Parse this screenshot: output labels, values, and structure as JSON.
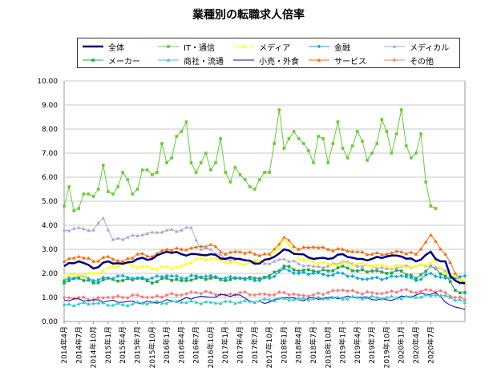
{
  "title": "業種別の転職求人倍率",
  "chart_data": {
    "type": "line",
    "title": "業種別の転職求人倍率",
    "ylim": [
      0,
      10
    ],
    "yticks": [
      "0.00",
      "1.00",
      "2.00",
      "3.00",
      "4.00",
      "5.00",
      "6.00",
      "7.00",
      "8.00",
      "9.00",
      "10.00"
    ],
    "x_labels": [
      "2014年4月",
      "2014年7月",
      "2014年10月",
      "2015年1月",
      "2015年4月",
      "2015年7月",
      "2015年10月",
      "2016年1月",
      "2016年4月",
      "2016年7月",
      "2016年10月",
      "2017年1月",
      "2017年4月",
      "2017年7月",
      "2017年10月",
      "2018年1月",
      "2018年4月",
      "2018年7月",
      "2018年10月",
      "2019年1月",
      "2019年4月",
      "2019年7月",
      "2019年10月",
      "2020年1月",
      "2020年4月",
      "2020年7月"
    ],
    "grid": true,
    "legend_position": "top",
    "series": [
      {
        "name": "全体",
        "color": "#000080",
        "marker": "line",
        "width": 2.5,
        "anchors": [
          [
            0,
            2.3
          ],
          [
            3,
            2.5
          ],
          [
            6,
            2.2
          ],
          [
            9,
            2.5
          ],
          [
            12,
            2.4
          ],
          [
            15,
            2.6
          ],
          [
            18,
            2.6
          ],
          [
            21,
            2.9
          ],
          [
            24,
            2.8
          ],
          [
            27,
            2.8
          ],
          [
            30,
            2.8
          ],
          [
            33,
            2.6
          ],
          [
            36,
            2.6
          ],
          [
            39,
            2.4
          ],
          [
            42,
            2.6
          ],
          [
            45,
            3.0
          ],
          [
            48,
            2.8
          ],
          [
            51,
            2.6
          ],
          [
            54,
            2.6
          ],
          [
            57,
            2.8
          ],
          [
            60,
            2.6
          ],
          [
            63,
            2.6
          ],
          [
            66,
            2.7
          ],
          [
            69,
            2.7
          ],
          [
            72,
            2.5
          ],
          [
            75,
            2.9
          ],
          [
            76,
            2.6
          ],
          [
            78,
            2.5
          ],
          [
            79,
            1.9
          ],
          [
            81,
            1.6
          ],
          [
            82,
            1.6
          ]
        ]
      },
      {
        "name": "IT・通信",
        "color": "#66cc33",
        "marker": "square",
        "values": [
          4.8,
          5.6,
          4.6,
          4.7,
          5.3,
          5.3,
          5.2,
          5.5,
          6.5,
          5.4,
          5.3,
          5.6,
          6.2,
          5.9,
          5.3,
          5.5,
          6.3,
          6.3,
          6.1,
          6.2,
          7.4,
          6.6,
          6.8,
          7.7,
          7.9,
          8.3,
          6.6,
          6.2,
          6.6,
          7.0,
          6.3,
          6.6,
          7.6,
          6.2,
          5.8,
          6.4,
          6.1,
          5.9,
          5.6,
          5.5,
          5.9,
          6.2,
          6.2,
          7.4,
          8.8,
          7.2,
          7.6,
          7.9,
          7.6,
          7.4,
          7.1,
          6.6,
          7.7,
          7.6,
          6.6,
          7.4,
          8.3,
          7.2,
          6.8,
          7.3,
          7.9,
          7.5,
          6.7,
          7.0,
          7.4,
          8.4,
          7.9,
          7.0,
          7.8,
          8.8,
          7.3,
          6.8,
          7.0,
          7.8,
          5.8,
          4.8,
          4.7
        ]
      },
      {
        "name": "メディア",
        "color": "#ffff00",
        "marker": "triangle",
        "anchors": [
          [
            0,
            1.9
          ],
          [
            6,
            2.0
          ],
          [
            12,
            2.4
          ],
          [
            18,
            2.2
          ],
          [
            24,
            2.3
          ],
          [
            27,
            2.6
          ],
          [
            30,
            2.6
          ],
          [
            36,
            2.4
          ],
          [
            42,
            2.6
          ],
          [
            45,
            3.4
          ],
          [
            48,
            2.6
          ],
          [
            54,
            2.4
          ],
          [
            60,
            2.4
          ],
          [
            66,
            2.3
          ],
          [
            72,
            2.3
          ],
          [
            76,
            2.5
          ],
          [
            78,
            2.0
          ],
          [
            82,
            1.7
          ]
        ]
      },
      {
        "name": "金融",
        "color": "#00aadd",
        "marker": "diamond",
        "anchors": [
          [
            0,
            1.7
          ],
          [
            3,
            1.9
          ],
          [
            6,
            1.7
          ],
          [
            9,
            1.8
          ],
          [
            12,
            1.9
          ],
          [
            15,
            1.8
          ],
          [
            18,
            1.8
          ],
          [
            21,
            1.9
          ],
          [
            24,
            1.8
          ],
          [
            27,
            1.9
          ],
          [
            30,
            1.9
          ],
          [
            33,
            1.8
          ],
          [
            36,
            1.8
          ],
          [
            39,
            1.7
          ],
          [
            42,
            1.8
          ],
          [
            45,
            2.2
          ],
          [
            48,
            2.0
          ],
          [
            51,
            2.0
          ],
          [
            54,
            1.9
          ],
          [
            57,
            2.0
          ],
          [
            60,
            1.8
          ],
          [
            63,
            1.8
          ],
          [
            66,
            1.8
          ],
          [
            69,
            1.9
          ],
          [
            72,
            1.7
          ],
          [
            75,
            2.0
          ],
          [
            78,
            1.8
          ],
          [
            80,
            1.8
          ],
          [
            82,
            1.9
          ]
        ]
      },
      {
        "name": "メディカル",
        "color": "#b0a6d8",
        "marker": "triangle",
        "anchors": [
          [
            0,
            3.8
          ],
          [
            3,
            3.9
          ],
          [
            6,
            3.8
          ],
          [
            8,
            4.3
          ],
          [
            10,
            3.4
          ],
          [
            13,
            3.5
          ],
          [
            16,
            3.6
          ],
          [
            19,
            3.7
          ],
          [
            21,
            3.8
          ],
          [
            24,
            3.8
          ],
          [
            26,
            3.9
          ],
          [
            28,
            3.0
          ],
          [
            30,
            3.0
          ],
          [
            33,
            2.6
          ],
          [
            36,
            2.6
          ],
          [
            39,
            2.5
          ],
          [
            42,
            2.4
          ],
          [
            45,
            2.6
          ],
          [
            48,
            2.4
          ],
          [
            51,
            2.3
          ],
          [
            54,
            2.3
          ],
          [
            57,
            2.5
          ],
          [
            60,
            2.3
          ],
          [
            63,
            2.3
          ],
          [
            66,
            2.2
          ],
          [
            69,
            2.3
          ],
          [
            72,
            2.3
          ],
          [
            75,
            2.3
          ],
          [
            78,
            2.1
          ],
          [
            80,
            1.8
          ],
          [
            82,
            1.6
          ]
        ]
      },
      {
        "name": "メーカー",
        "color": "#22aa44",
        "marker": "square",
        "anchors": [
          [
            0,
            1.6
          ],
          [
            3,
            1.8
          ],
          [
            6,
            1.6
          ],
          [
            9,
            1.8
          ],
          [
            12,
            1.7
          ],
          [
            15,
            1.8
          ],
          [
            18,
            1.6
          ],
          [
            21,
            1.8
          ],
          [
            24,
            1.7
          ],
          [
            27,
            1.8
          ],
          [
            30,
            1.8
          ],
          [
            33,
            1.7
          ],
          [
            36,
            1.8
          ],
          [
            39,
            1.8
          ],
          [
            42,
            1.9
          ],
          [
            45,
            2.3
          ],
          [
            48,
            2.1
          ],
          [
            51,
            2.1
          ],
          [
            54,
            2.1
          ],
          [
            57,
            2.3
          ],
          [
            60,
            2.1
          ],
          [
            63,
            2.1
          ],
          [
            66,
            2.0
          ],
          [
            69,
            2.1
          ],
          [
            72,
            1.8
          ],
          [
            75,
            2.3
          ],
          [
            78,
            1.9
          ],
          [
            80,
            1.3
          ],
          [
            82,
            1.2
          ]
        ]
      },
      {
        "name": "商社・流通",
        "color": "#33cccc",
        "marker": "triangle",
        "anchors": [
          [
            0,
            0.7
          ],
          [
            6,
            0.75
          ],
          [
            12,
            0.7
          ],
          [
            18,
            0.8
          ],
          [
            24,
            0.8
          ],
          [
            30,
            0.8
          ],
          [
            36,
            0.8
          ],
          [
            42,
            0.9
          ],
          [
            48,
            0.95
          ],
          [
            54,
            0.95
          ],
          [
            60,
            1.0
          ],
          [
            66,
            1.0
          ],
          [
            72,
            1.0
          ],
          [
            76,
            1.1
          ],
          [
            79,
            1.0
          ],
          [
            82,
            0.8
          ]
        ]
      },
      {
        "name": "小売・外食",
        "color": "#0000cc",
        "marker": "line",
        "width": 1,
        "anchors": [
          [
            0,
            0.9
          ],
          [
            6,
            0.9
          ],
          [
            12,
            0.8
          ],
          [
            18,
            0.8
          ],
          [
            24,
            0.9
          ],
          [
            27,
            1.0
          ],
          [
            30,
            1.0
          ],
          [
            33,
            1.1
          ],
          [
            36,
            1.1
          ],
          [
            39,
            0.8
          ],
          [
            42,
            0.8
          ],
          [
            45,
            1.0
          ],
          [
            48,
            0.9
          ],
          [
            54,
            1.0
          ],
          [
            60,
            1.0
          ],
          [
            66,
            0.9
          ],
          [
            72,
            1.1
          ],
          [
            76,
            1.2
          ],
          [
            78,
            0.8
          ],
          [
            80,
            0.6
          ],
          [
            82,
            0.5
          ]
        ]
      },
      {
        "name": "サービス",
        "color": "#ff6600",
        "marker": "triangle",
        "anchors": [
          [
            0,
            2.5
          ],
          [
            3,
            2.7
          ],
          [
            6,
            2.5
          ],
          [
            9,
            2.7
          ],
          [
            12,
            2.5
          ],
          [
            15,
            2.8
          ],
          [
            18,
            2.7
          ],
          [
            21,
            3.0
          ],
          [
            24,
            3.0
          ],
          [
            27,
            3.1
          ],
          [
            30,
            3.2
          ],
          [
            33,
            2.8
          ],
          [
            36,
            2.9
          ],
          [
            39,
            2.8
          ],
          [
            42,
            2.8
          ],
          [
            45,
            3.5
          ],
          [
            48,
            3.0
          ],
          [
            51,
            3.1
          ],
          [
            54,
            3.0
          ],
          [
            57,
            3.0
          ],
          [
            60,
            2.9
          ],
          [
            63,
            2.8
          ],
          [
            66,
            2.8
          ],
          [
            69,
            2.9
          ],
          [
            72,
            2.8
          ],
          [
            75,
            3.6
          ],
          [
            78,
            2.8
          ],
          [
            80,
            2.0
          ],
          [
            82,
            1.6
          ]
        ]
      },
      {
        "name": "その他",
        "color": "#ff7777",
        "marker": "diamond",
        "anchors": [
          [
            0,
            1.0
          ],
          [
            3,
            1.0
          ],
          [
            6,
            0.9
          ],
          [
            9,
            1.0
          ],
          [
            12,
            1.0
          ],
          [
            15,
            1.1
          ],
          [
            18,
            1.0
          ],
          [
            21,
            1.1
          ],
          [
            24,
            1.1
          ],
          [
            27,
            1.2
          ],
          [
            30,
            1.2
          ],
          [
            33,
            1.1
          ],
          [
            36,
            1.2
          ],
          [
            39,
            1.1
          ],
          [
            42,
            1.1
          ],
          [
            45,
            1.2
          ],
          [
            48,
            1.1
          ],
          [
            51,
            1.1
          ],
          [
            54,
            1.2
          ],
          [
            57,
            1.3
          ],
          [
            60,
            1.2
          ],
          [
            63,
            1.2
          ],
          [
            66,
            1.2
          ],
          [
            69,
            1.3
          ],
          [
            72,
            1.2
          ],
          [
            75,
            1.3
          ],
          [
            78,
            1.2
          ],
          [
            80,
            1.0
          ],
          [
            82,
            0.9
          ]
        ]
      }
    ]
  }
}
